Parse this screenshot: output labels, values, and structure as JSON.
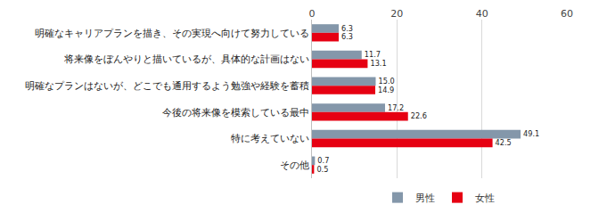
{
  "chart_data": {
    "type": "bar",
    "orientation": "horizontal",
    "categories": [
      "明確なキャリアプランを描き、その実現へ向けて努力している",
      "将来像をぼんやりと描いているが、具体的な計画はない",
      "明確なプランはないが、どこでも通用するよう勉強や経験を蓄積",
      "今後の将来像を模索している最中",
      "特に考えていない",
      "その他"
    ],
    "series": [
      {
        "name": "男性",
        "color": "#8497aa",
        "values": [
          6.3,
          11.7,
          15.0,
          17.2,
          49.1,
          0.7
        ],
        "value_labels": [
          "6.3",
          "11.7",
          "15.0",
          "17.2",
          "49.1",
          "0.7"
        ]
      },
      {
        "name": "女性",
        "color": "#e60012",
        "values": [
          6.3,
          13.1,
          14.9,
          22.6,
          42.5,
          0.5
        ],
        "value_labels": [
          "6.3",
          "13.1",
          "14.9",
          "22.6",
          "42.5",
          "0.5"
        ]
      }
    ],
    "xlim": [
      0,
      60
    ],
    "xticks": [
      0,
      20,
      40,
      60
    ],
    "grid": true,
    "data_labels": true,
    "legend": "bottom"
  }
}
